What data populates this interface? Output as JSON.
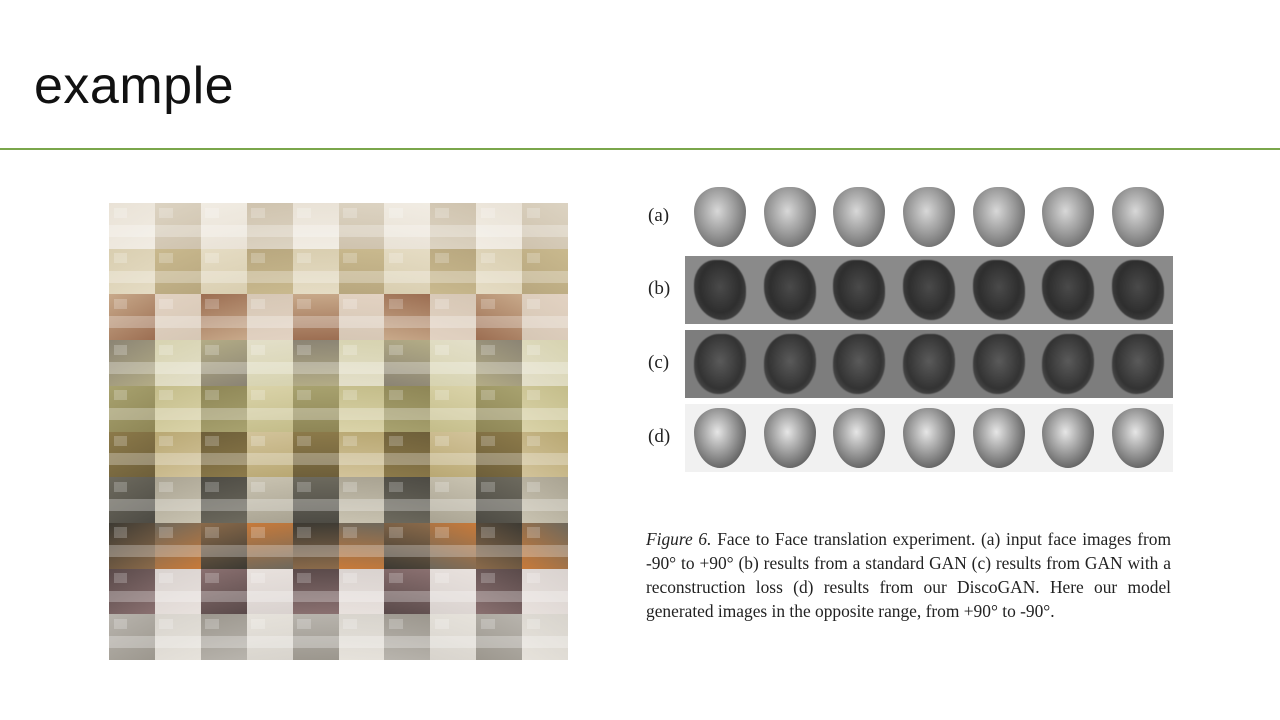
{
  "slide": {
    "title": "example"
  },
  "bedroom_grid": {
    "rows": 10,
    "cols": 10,
    "row_colors": [
      [
        "#e9e2d6",
        "#dcd3c2",
        "#f1ece3",
        "#cfc3ae"
      ],
      [
        "#d9ceb0",
        "#c9b98e",
        "#e5dcc4",
        "#b8a77f"
      ],
      [
        "#c8a98a",
        "#e2d2c2",
        "#9c6e52",
        "#d6c7b5"
      ],
      [
        "#8b8474",
        "#d7d3b0",
        "#b3ac86",
        "#e3dfc9"
      ],
      [
        "#a8a26f",
        "#c4bd8a",
        "#8e8656",
        "#dad3a9"
      ],
      [
        "#8c7a4a",
        "#b9a873",
        "#6e5f3a",
        "#d2c39a"
      ],
      [
        "#6d6a5e",
        "#a9a392",
        "#4d4b44",
        "#c9c3b1"
      ],
      [
        "#3d3a33",
        "#6e685c",
        "#8a6a4a",
        "#c77a3a"
      ],
      [
        "#5a4a4a",
        "#d9d2cf",
        "#8a7070",
        "#e8e1dd"
      ],
      [
        "#b8b4ad",
        "#d8d4cd",
        "#9c978e",
        "#e6e2db"
      ]
    ]
  },
  "face_figure": {
    "rows": [
      {
        "label": "(a)",
        "style": "none",
        "face": "clean"
      },
      {
        "label": "(b)",
        "style": "gray1",
        "face": "blob"
      },
      {
        "label": "(c)",
        "style": "gray2",
        "face": "blob2"
      },
      {
        "label": "(d)",
        "style": "light",
        "face": "recon"
      }
    ],
    "faces_per_row": 7
  },
  "caption": {
    "figure_label": "Figure 6.",
    "text": "Face to Face translation experiment. (a) input face images from -90° to +90° (b) results from a standard GAN (c) results from GAN with a reconstruction loss (d) results from our DiscoGAN. Here our model generated images in the opposite range, from +90° to -90°."
  }
}
